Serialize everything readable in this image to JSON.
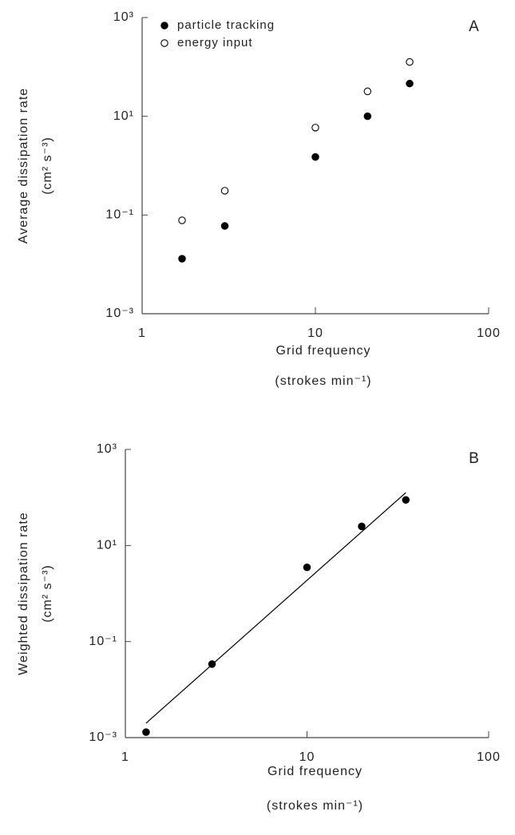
{
  "chart_data": [
    {
      "type": "scatter",
      "panel_label": "A",
      "ylabel": [
        "Average dissipation rate",
        "(cm² s⁻³)"
      ],
      "xlabel": [
        "Grid frequency",
        "(strokes min⁻¹)"
      ],
      "log_x": true,
      "log_y": true,
      "xlim": [
        1,
        100
      ],
      "xticks": [
        1,
        10,
        100
      ],
      "ylim": [
        0.001,
        1000
      ],
      "yticks": [
        {
          "value": 0.001,
          "label": "10⁻³"
        },
        {
          "value": 0.1,
          "label": "10⁻¹"
        },
        {
          "value": 10,
          "label": "10¹"
        },
        {
          "value": 1000,
          "label": "10³"
        }
      ],
      "legend": "top-left",
      "series": [
        {
          "name": "particle tracking",
          "color": "#000000",
          "marker": "filled",
          "x": [
            1.7,
            3,
            10,
            20,
            35
          ],
          "values": [
            0.013,
            0.06,
            1.5,
            10,
            46
          ]
        },
        {
          "name": "energy input",
          "color": "#000000",
          "marker": "open",
          "x": [
            1.7,
            3,
            10,
            20,
            35
          ],
          "values": [
            0.078,
            0.31,
            5.9,
            32,
            126
          ]
        }
      ]
    },
    {
      "type": "scatter",
      "panel_label": "B",
      "ylabel": [
        "Weighted dissipation rate",
        "(cm² s⁻³)"
      ],
      "xlabel": [
        "Grid frequency",
        "(strokes min⁻¹)"
      ],
      "log_x": true,
      "log_y": true,
      "xlim": [
        1,
        100
      ],
      "xticks": [
        1,
        10,
        100
      ],
      "ylim": [
        0.001,
        1000
      ],
      "yticks": [
        {
          "value": 0.001,
          "label": "10⁻³"
        },
        {
          "value": 0.1,
          "label": "10⁻¹"
        },
        {
          "value": 10,
          "label": "10¹"
        },
        {
          "value": 1000,
          "label": "10³"
        }
      ],
      "series": [
        {
          "color": "#000000",
          "marker": "filled",
          "x": [
            1.3,
            3,
            10,
            20,
            35
          ],
          "values": [
            0.0013,
            0.034,
            3.5,
            25,
            89
          ]
        }
      ],
      "fit_line": {
        "color": "#000000",
        "x": [
          1.3,
          35
        ],
        "values": [
          0.002,
          126
        ]
      }
    }
  ]
}
